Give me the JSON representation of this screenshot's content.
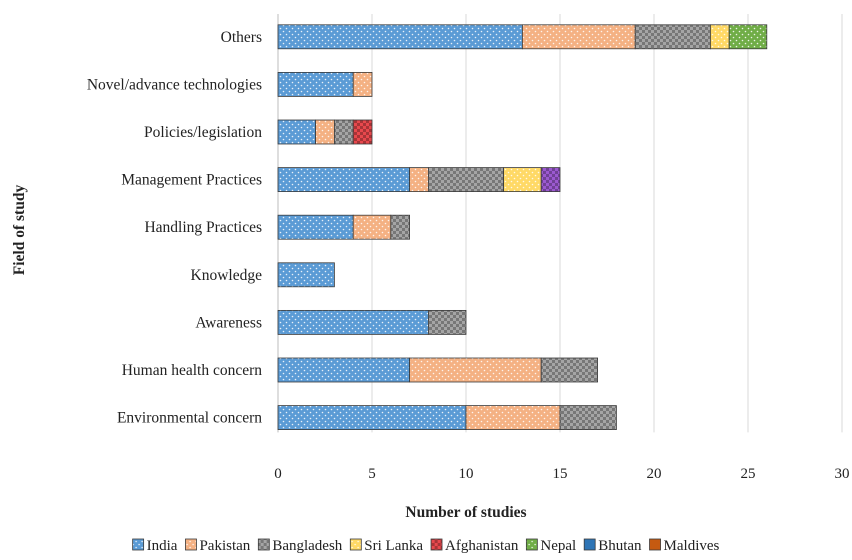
{
  "chart_data": {
    "type": "bar",
    "orientation": "horizontal",
    "stacked": true,
    "title": "",
    "xlabel": "Number of studies",
    "ylabel": "Field of study",
    "xlim": [
      0,
      30
    ],
    "x_ticks": [
      0,
      5,
      10,
      15,
      20,
      25,
      30
    ],
    "grid": "vertical",
    "legend_position": "bottom",
    "categories": [
      "Others",
      "Novel/advance technologies",
      "Policies/legislation",
      "Management Practices",
      "Handling Practices",
      "Knowledge",
      "Awareness",
      "Human health concern",
      "Environmental concern"
    ],
    "series": [
      {
        "name": "India",
        "color": "#5b9bd5",
        "pattern": "dots",
        "values": [
          13,
          4,
          2,
          7,
          4,
          3,
          8,
          7,
          10
        ]
      },
      {
        "name": "Pakistan",
        "color": "#f4b183",
        "pattern": "dots",
        "values": [
          6,
          1,
          1,
          1,
          2,
          0,
          0,
          7,
          5
        ]
      },
      {
        "name": "Bangladesh",
        "color": "#a5a5a5",
        "pattern": "checker",
        "values": [
          4,
          0,
          1,
          4,
          1,
          0,
          2,
          3,
          3
        ]
      },
      {
        "name": "Sri Lanka",
        "color": "#ffd966",
        "pattern": "dots",
        "values": [
          1,
          0,
          0,
          2,
          0,
          0,
          0,
          0,
          0
        ]
      },
      {
        "name": "Afghanistan",
        "color": "#e8484d",
        "pattern": "checker",
        "values": [
          0,
          0,
          1,
          0,
          0,
          0,
          0,
          0,
          0
        ]
      },
      {
        "name": "Nepal",
        "color": "#70ad47",
        "pattern": "dots",
        "values": [
          2,
          0,
          0,
          0,
          0,
          0,
          0,
          0,
          0
        ]
      },
      {
        "name": "Bhutan",
        "color": "#2e75b6",
        "pattern": "solid",
        "values": [
          0,
          0,
          0,
          0,
          0,
          0,
          0,
          0,
          0
        ]
      },
      {
        "name": "Maldives",
        "color": "#c55a11",
        "pattern": "solid",
        "values": [
          0,
          0,
          0,
          0,
          0,
          0,
          0,
          0,
          0
        ]
      },
      {
        "name": "",
        "color": "#9b59d0",
        "pattern": "checker",
        "values": [
          0,
          0,
          0,
          1,
          0,
          0,
          0,
          0,
          0
        ]
      }
    ]
  }
}
